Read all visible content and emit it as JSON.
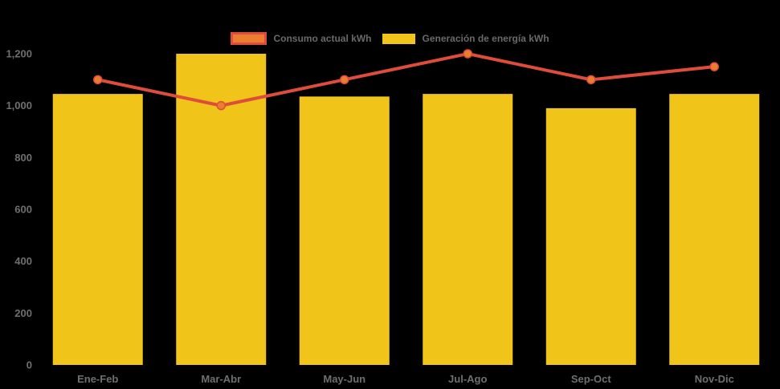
{
  "app": {
    "background": "#000000"
  },
  "legend": {
    "position": "top-center",
    "label_color": "#696969",
    "items": [
      {
        "label": "Consumo actual kWh",
        "series": "line",
        "fill": "#EB7D2E",
        "border": "#DE4C3C"
      },
      {
        "label": "Generación de energía kWh",
        "series": "bar",
        "fill": "#F0C419"
      }
    ]
  },
  "chart_data": {
    "type": "bar+line",
    "title": "",
    "xlabel": "",
    "ylabel": "",
    "categories": [
      "Ene-Feb",
      "Mar-Abr",
      "May-Jun",
      "Jul-Ago",
      "Sep-Oct",
      "Nov-Dic"
    ],
    "series": [
      {
        "name": "Generación de energía kWh",
        "type": "bar",
        "color": "#F0C419",
        "values": [
          1045,
          1200,
          1035,
          1045,
          990,
          1045
        ]
      },
      {
        "name": "Consumo actual kWh",
        "type": "line",
        "color": "#DE4C3C",
        "marker_color": "#EB7D2E",
        "values": [
          1100,
          1000,
          1100,
          1200,
          1100,
          1150
        ]
      }
    ],
    "ylim": [
      0,
      1200
    ],
    "yticks": [
      {
        "value": 0,
        "label": "0"
      },
      {
        "value": 200,
        "label": "200"
      },
      {
        "value": 400,
        "label": "400"
      },
      {
        "value": 600,
        "label": "600"
      },
      {
        "value": 800,
        "label": "800"
      },
      {
        "value": 1000,
        "label": "1,000"
      },
      {
        "value": 1200,
        "label": "1,200"
      }
    ],
    "grid": false,
    "legend_position": "top",
    "background_color": "#000000",
    "y_axis_label_color": "#6F6F6F",
    "x_axis_label_color": "#6F6F6F"
  }
}
